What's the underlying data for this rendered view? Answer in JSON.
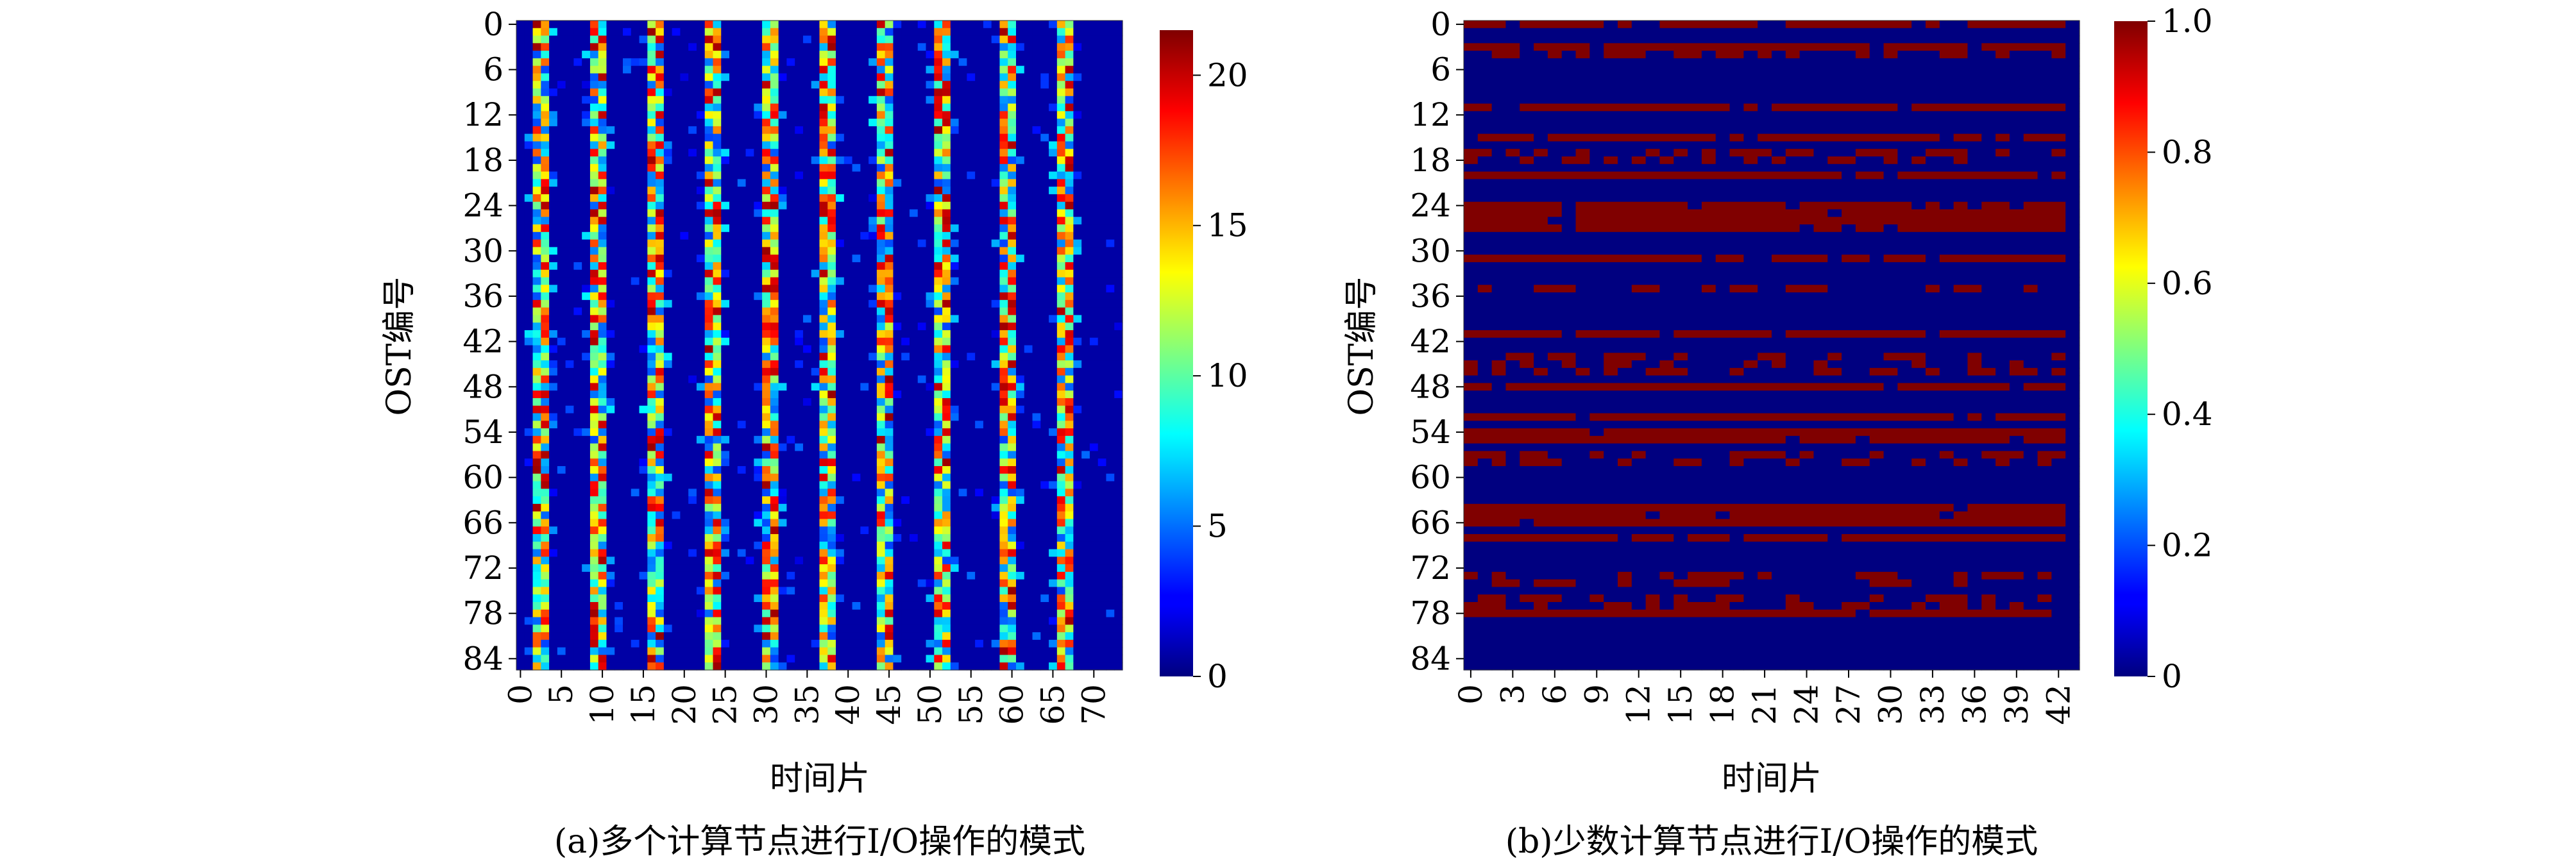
{
  "chart_data": [
    {
      "type": "heatmap",
      "caption": "(a)多个计算节点进行I/O操作的模式",
      "xlabel": "时间片",
      "ylabel": "OST编号",
      "n_cols": 74,
      "n_rows": 86,
      "x_ticks": [
        "0",
        "5",
        "10",
        "15",
        "20",
        "25",
        "30",
        "35",
        "40",
        "45",
        "50",
        "55",
        "60",
        "65",
        "70"
      ],
      "y_ticks": [
        "0",
        "6",
        "12",
        "18",
        "24",
        "30",
        "36",
        "42",
        "48",
        "54",
        "60",
        "66",
        "72",
        "78",
        "84"
      ],
      "colorbar": {
        "min": 0,
        "max": 21.5,
        "ticks": [
          "0",
          "5",
          "10",
          "15",
          "20"
        ],
        "tick_values": [
          0,
          5,
          10,
          15,
          20
        ],
        "colormap": "jet"
      },
      "background_value": 0.8,
      "stripe_cols": [
        2,
        3,
        9,
        10,
        16,
        17,
        23,
        24,
        30,
        31,
        37,
        38,
        44,
        45,
        51,
        52,
        59,
        60,
        66,
        67
      ],
      "stripe_value_range": [
        4,
        21
      ]
    },
    {
      "type": "heatmap",
      "caption": "(b)少数计算节点进行I/O操作的模式",
      "xlabel": "时间片",
      "ylabel": "OST编号",
      "n_cols": 44,
      "n_rows": 86,
      "x_ticks": [
        "0",
        "3",
        "6",
        "9",
        "12",
        "15",
        "18",
        "21",
        "24",
        "27",
        "30",
        "33",
        "36",
        "39",
        "42"
      ],
      "y_ticks": [
        "0",
        "6",
        "12",
        "18",
        "24",
        "30",
        "36",
        "42",
        "48",
        "54",
        "60",
        "66",
        "72",
        "78",
        "84"
      ],
      "colorbar": {
        "min": 0,
        "max": 1.0,
        "ticks": [
          "0",
          "0.2",
          "0.4",
          "0.6",
          "0.8",
          "1.0"
        ],
        "tick_values": [
          0,
          0.2,
          0.4,
          0.6,
          0.8,
          1.0
        ],
        "colormap": "jet"
      },
      "background_value": 0.0,
      "active_rows": [
        0,
        3,
        11,
        15,
        20,
        24,
        25,
        26,
        27,
        31,
        41,
        48,
        52,
        54,
        55,
        64,
        65,
        66,
        68,
        78
      ],
      "partial_rows": [
        4,
        17,
        18,
        35,
        44,
        45,
        46,
        57,
        58,
        73,
        74,
        76,
        77
      ]
    }
  ]
}
